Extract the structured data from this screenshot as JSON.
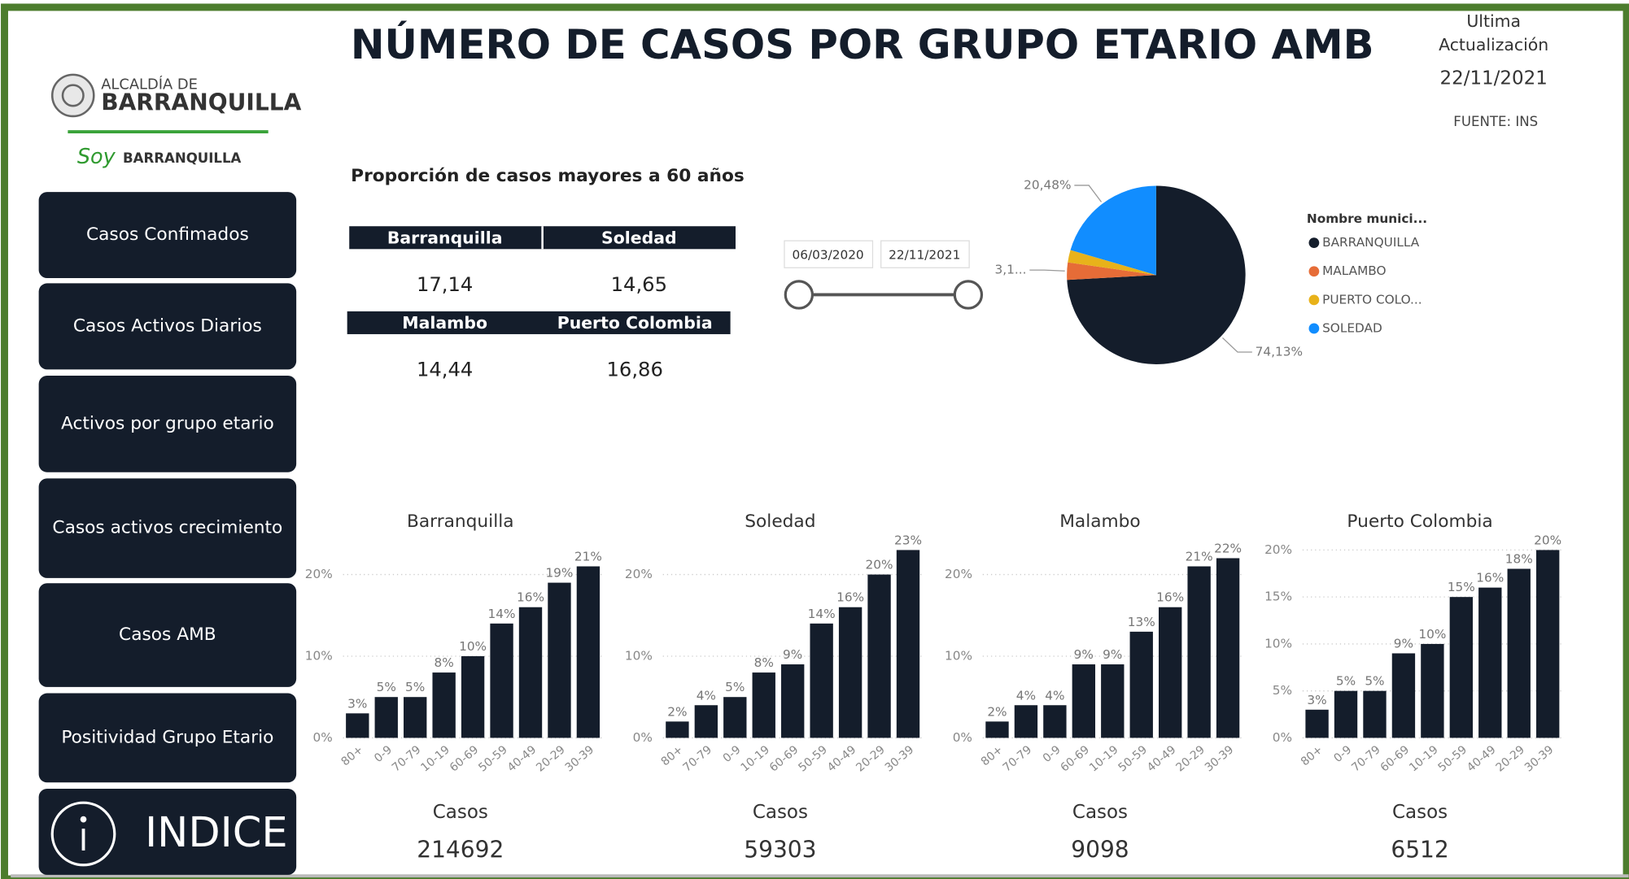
{
  "header": {
    "title": "NÚMERO DE CASOS POR GRUPO ETARIO AMB",
    "update_label": [
      "Ultima",
      "Actualización"
    ],
    "update_date": "22/11/2021",
    "source": "FUENTE: INS"
  },
  "logo": {
    "line1": "ALCALDÍA DE",
    "line2": "BARRANQUILLA",
    "slogan_a": "Soy",
    "slogan_b": "BARRANQUILLA"
  },
  "nav": [
    "Casos Confimados",
    "Casos Activos Diarios",
    "Activos por grupo etario",
    "Casos activos crecimiento",
    "Casos AMB",
    "Positividad Grupo Etario",
    "INDICE"
  ],
  "table": {
    "title": "Proporción de casos mayores a 60 años",
    "rows": [
      [
        "Barranquilla",
        "Soledad"
      ],
      [
        "17,14",
        "14,65"
      ],
      [
        "Malambo",
        "Puerto Colombia"
      ],
      [
        "14,44",
        "16,86"
      ]
    ]
  },
  "slicer": {
    "start": "06/03/2020",
    "end": "22/11/2021"
  },
  "chart_data": [
    {
      "type": "pie",
      "legend_title": "Nombre munici...",
      "categories": [
        "BARRANQUILLA",
        "MALAMBO",
        "PUERTO COLO...",
        "SOLEDAD"
      ],
      "values": [
        74.13,
        3.14,
        2.25,
        20.48
      ],
      "value_labels": [
        "74,13%",
        "3,1...",
        null,
        "20,48%"
      ],
      "colors": [
        "#141d2b",
        "#e66c37",
        "#e8b21a",
        "#118dff"
      ]
    },
    {
      "type": "bar",
      "title": "Barranquilla",
      "categories": [
        "80+",
        "0-9",
        "70-79",
        "10-19",
        "60-69",
        "50-59",
        "40-49",
        "20-29",
        "30-39"
      ],
      "values": [
        3,
        5,
        5,
        8,
        10,
        14,
        16,
        19,
        21
      ],
      "value_labels": [
        "3%",
        "5%",
        "5%",
        "8%",
        "10%",
        "14%",
        "16%",
        "19%",
        "21%"
      ],
      "color": "#141d2b",
      "ylim": [
        0,
        23
      ],
      "yticks": [
        {
          "value": 0,
          "label": "0%"
        },
        {
          "value": 10,
          "label": "10%"
        },
        {
          "value": 20,
          "label": "20%"
        }
      ],
      "grid": true,
      "total_label": "Casos",
      "total": 214692
    },
    {
      "type": "bar",
      "title": "Soledad",
      "categories": [
        "80+",
        "70-79",
        "0-9",
        "10-19",
        "60-69",
        "50-59",
        "40-49",
        "20-29",
        "30-39"
      ],
      "values": [
        2,
        4,
        5,
        8,
        9,
        14,
        16,
        20,
        23
      ],
      "value_labels": [
        "2%",
        "4%",
        "5%",
        "8%",
        "9%",
        "14%",
        "16%",
        "20%",
        "23%"
      ],
      "color": "#141d2b",
      "ylim": [
        0,
        23
      ],
      "yticks": [
        {
          "value": 0,
          "label": "0%"
        },
        {
          "value": 10,
          "label": "10%"
        },
        {
          "value": 20,
          "label": "20%"
        }
      ],
      "grid": true,
      "total_label": "Casos",
      "total": 59303
    },
    {
      "type": "bar",
      "title": "Malambo",
      "categories": [
        "80+",
        "70-79",
        "0-9",
        "60-69",
        "10-19",
        "50-59",
        "40-49",
        "20-29",
        "30-39"
      ],
      "values": [
        2,
        4,
        4,
        9,
        9,
        13,
        16,
        21,
        22
      ],
      "value_labels": [
        "2%",
        "4%",
        "4%",
        "9%",
        "9%",
        "13%",
        "16%",
        "21%",
        "22%"
      ],
      "color": "#141d2b",
      "ylim": [
        0,
        23
      ],
      "yticks": [
        {
          "value": 0,
          "label": "0%"
        },
        {
          "value": 10,
          "label": "10%"
        },
        {
          "value": 20,
          "label": "20%"
        }
      ],
      "grid": true,
      "total_label": "Casos",
      "total": 9098
    },
    {
      "type": "bar",
      "title": "Puerto Colombia",
      "categories": [
        "80+",
        "0-9",
        "70-79",
        "60-69",
        "10-19",
        "50-59",
        "40-49",
        "20-29",
        "30-39"
      ],
      "values": [
        3,
        5,
        5,
        9,
        10,
        15,
        16,
        18,
        20
      ],
      "value_labels": [
        "3%",
        "5%",
        "5%",
        "9%",
        "10%",
        "15%",
        "16%",
        "18%",
        "20%"
      ],
      "color": "#141d2b",
      "ylim": [
        0,
        20
      ],
      "yticks": [
        {
          "value": 0,
          "label": "0%"
        },
        {
          "value": 5,
          "label": "5%"
        },
        {
          "value": 10,
          "label": "10%"
        },
        {
          "value": 15,
          "label": "15%"
        },
        {
          "value": 20,
          "label": "20%"
        }
      ],
      "grid": true,
      "total_label": "Casos",
      "total": 6512
    }
  ]
}
